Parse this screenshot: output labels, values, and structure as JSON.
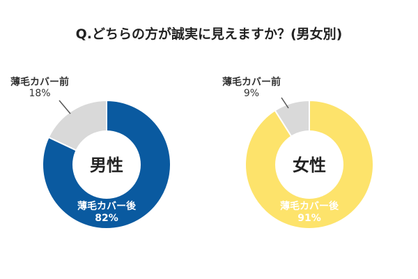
{
  "title": "Q.どちらの方が誠実に見えますか？(男女別)",
  "chart_data": [
    {
      "type": "pie",
      "center_label": "男性",
      "categories": [
        "薄毛カバー後",
        "薄毛カバー前"
      ],
      "values": [
        82,
        18
      ],
      "value_labels": [
        "82%",
        "18%"
      ],
      "colors": [
        "#0a5aa0",
        "#d9d9d9"
      ],
      "text_colors": [
        "#ffffff",
        "#333333"
      ]
    },
    {
      "type": "pie",
      "center_label": "女性",
      "categories": [
        "薄毛カバー後",
        "薄毛カバー前"
      ],
      "values": [
        91,
        9
      ],
      "value_labels": [
        "91%",
        "9%"
      ],
      "colors": [
        "#fde36b",
        "#d9d9d9"
      ],
      "text_colors": [
        "#ffffff",
        "#333333"
      ]
    }
  ]
}
